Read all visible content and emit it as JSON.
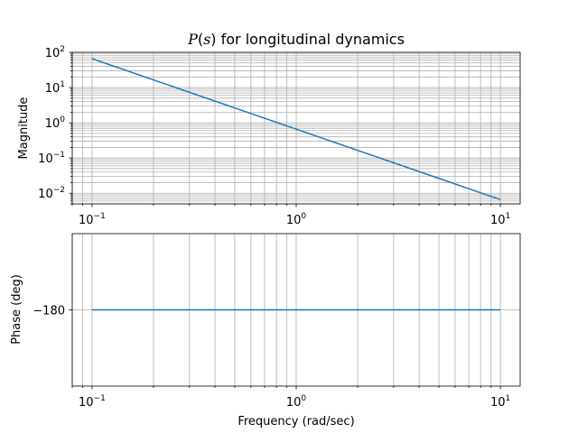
{
  "title": {
    "prefix": "P",
    "paren_open": "(",
    "var": "s",
    "paren_close": ")",
    "rest": " for longitudinal dynamics"
  },
  "chart_data": [
    {
      "type": "line",
      "name": "magnitude-plot",
      "ylabel": "Magnitude",
      "xlabel": "",
      "xscale": "log",
      "yscale": "log",
      "xlim": [
        0.08,
        12.5
      ],
      "ylim": [
        0.005,
        100
      ],
      "grid": "both (major and minor)",
      "x_ticks": [
        {
          "base": "10",
          "exp": "−1",
          "value": 0.1
        },
        {
          "base": "10",
          "exp": "0",
          "value": 1
        },
        {
          "base": "10",
          "exp": "1",
          "value": 10
        }
      ],
      "y_ticks": [
        {
          "base": "10",
          "exp": "−2",
          "value": 0.01
        },
        {
          "base": "10",
          "exp": "−1",
          "value": 0.1
        },
        {
          "base": "10",
          "exp": "0",
          "value": 1
        },
        {
          "base": "10",
          "exp": "1",
          "value": 10
        },
        {
          "base": "10",
          "exp": "2",
          "value": 100
        }
      ],
      "series": [
        {
          "x": [
            0.1,
            0.2,
            0.5,
            1,
            2,
            5,
            10
          ],
          "y": [
            66,
            16.5,
            2.64,
            0.66,
            0.165,
            0.0264,
            0.0066
          ]
        }
      ],
      "color": "#1f77b4"
    },
    {
      "type": "line",
      "name": "phase-plot",
      "ylabel": "Phase (deg)",
      "xlabel": "Frequency (rad/sec)",
      "xscale": "log",
      "xlim": [
        0.08,
        12.5
      ],
      "ylim": [
        -180.055,
        -179.945
      ],
      "grid": "both (major and minor)",
      "x_ticks": [
        {
          "base": "10",
          "exp": "−1",
          "value": 0.1
        },
        {
          "base": "10",
          "exp": "0",
          "value": 1
        },
        {
          "base": "10",
          "exp": "1",
          "value": 10
        }
      ],
      "y_ticks": [
        {
          "label": "−180",
          "value": -180
        }
      ],
      "series": [
        {
          "x": [
            0.1,
            10
          ],
          "y": [
            -180,
            -180
          ]
        }
      ],
      "color": "#1f77b4"
    }
  ]
}
